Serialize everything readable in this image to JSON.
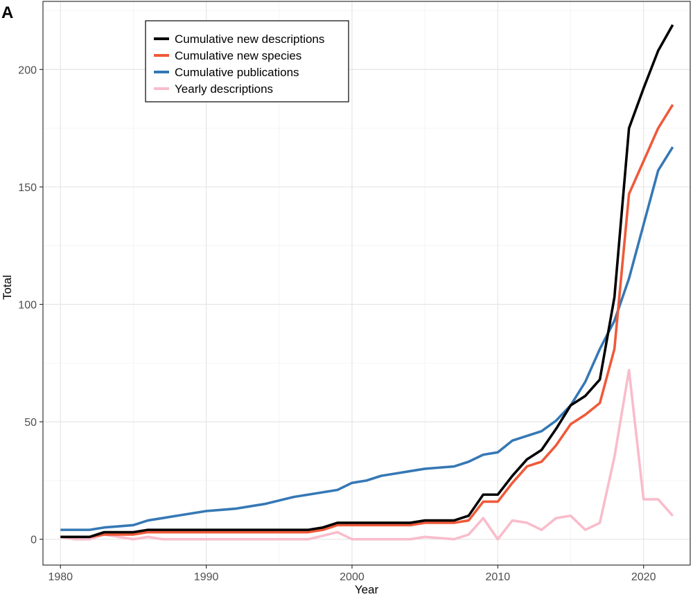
{
  "panel_label": "A",
  "chart_data": {
    "type": "line",
    "title": "",
    "xlabel": "Year",
    "ylabel": "Total",
    "xlim": [
      1978.8,
      2023.2
    ],
    "ylim": [
      -11,
      229
    ],
    "xticks": [
      1980,
      1990,
      2000,
      2010,
      2020
    ],
    "yticks": [
      0,
      50,
      100,
      150,
      200
    ],
    "grid": true,
    "legend_position": "top-left",
    "x": [
      1980,
      1981,
      1982,
      1983,
      1984,
      1985,
      1986,
      1987,
      1988,
      1989,
      1990,
      1991,
      1992,
      1993,
      1994,
      1995,
      1996,
      1997,
      1998,
      1999,
      2000,
      2001,
      2002,
      2003,
      2004,
      2005,
      2006,
      2007,
      2008,
      2009,
      2010,
      2011,
      2012,
      2013,
      2014,
      2015,
      2016,
      2017,
      2018,
      2019,
      2020,
      2021,
      2022
    ],
    "series": [
      {
        "name": "Cumulative new descriptions",
        "color": "#000000",
        "values": [
          1,
          1,
          1,
          3,
          3,
          3,
          4,
          4,
          4,
          4,
          4,
          4,
          4,
          4,
          4,
          4,
          4,
          4,
          5,
          7,
          7,
          7,
          7,
          7,
          7,
          8,
          8,
          8,
          10,
          19,
          19,
          27,
          34,
          38,
          47,
          57,
          61,
          68,
          103,
          175,
          192,
          208,
          219
        ]
      },
      {
        "name": "Cumulative new species",
        "color": "#ee5a3a",
        "values": [
          1,
          1,
          1,
          2,
          2,
          2,
          3,
          3,
          3,
          3,
          3,
          3,
          3,
          3,
          3,
          3,
          3,
          3,
          4,
          6,
          6,
          6,
          6,
          6,
          6,
          7,
          7,
          7,
          8,
          16,
          16,
          24,
          31,
          33,
          40,
          49,
          53,
          58,
          81,
          147,
          161,
          175,
          185
        ]
      },
      {
        "name": "Cumulative publications",
        "color": "#3578b5",
        "values": [
          4,
          4,
          4,
          5,
          5.5,
          6,
          8,
          9,
          10,
          11,
          12,
          12.5,
          13,
          14,
          15,
          16.5,
          18,
          19,
          20,
          21,
          24,
          25,
          27,
          28,
          29,
          30,
          30.5,
          31,
          33,
          36,
          37,
          42,
          44,
          46,
          50.5,
          57,
          67,
          81,
          93,
          111,
          134,
          157,
          167
        ]
      },
      {
        "name": "Yearly descriptions",
        "color": "#f9bccb",
        "values": [
          1,
          0,
          0,
          2,
          1,
          0,
          1,
          0,
          0,
          0,
          0,
          0,
          0,
          0,
          0,
          0,
          0,
          0,
          1.5,
          3,
          0,
          0,
          0,
          0,
          0,
          1,
          0.5,
          0,
          2,
          9,
          0,
          8,
          7,
          4,
          9,
          10,
          4,
          7,
          35,
          72,
          17,
          17,
          10
        ]
      }
    ]
  }
}
